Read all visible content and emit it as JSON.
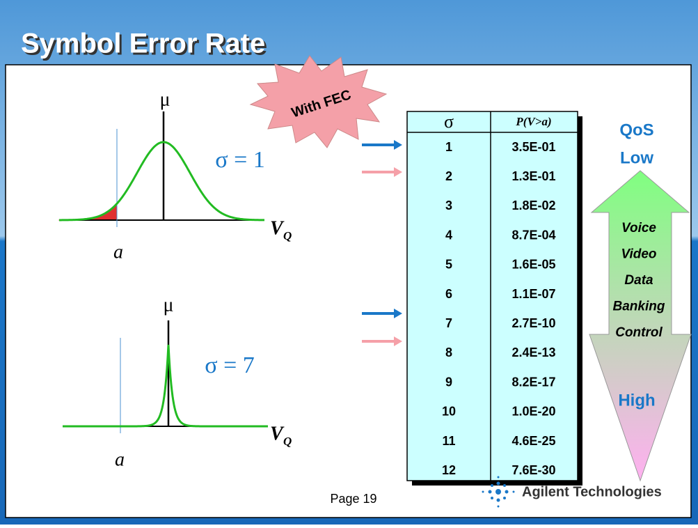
{
  "header": {
    "title": "Symbol Error Rate"
  },
  "burst": "With FEC",
  "plots": [
    {
      "mu": "μ",
      "sigma": "σ = 1",
      "axis": "V",
      "axis_sub": "Q",
      "threshold": "a"
    },
    {
      "mu": "μ",
      "sigma": "σ = 7",
      "axis": "V",
      "axis_sub": "Q",
      "threshold": "a"
    }
  ],
  "table": {
    "header": [
      "σ",
      "P(V>a)"
    ],
    "rows": [
      [
        "1",
        "3.5E-01"
      ],
      [
        "2",
        "1.3E-01"
      ],
      [
        "3",
        "1.8E-02"
      ],
      [
        "4",
        "8.7E-04"
      ],
      [
        "5",
        "1.6E-05"
      ],
      [
        "6",
        "1.1E-07"
      ],
      [
        "7",
        "2.7E-10"
      ],
      [
        "8",
        "2.4E-13"
      ],
      [
        "9",
        "8.2E-17"
      ],
      [
        "10",
        "1.0E-20"
      ],
      [
        "11",
        "4.6E-25"
      ],
      [
        "12",
        "7.6E-30"
      ]
    ]
  },
  "qos": {
    "label": "QoS",
    "low": "Low",
    "high": "High",
    "services": [
      "Voice",
      "Video",
      "Data",
      "Banking",
      "Control"
    ]
  },
  "footer": {
    "page": "Page 19",
    "company": "Agilent Technologies"
  }
}
